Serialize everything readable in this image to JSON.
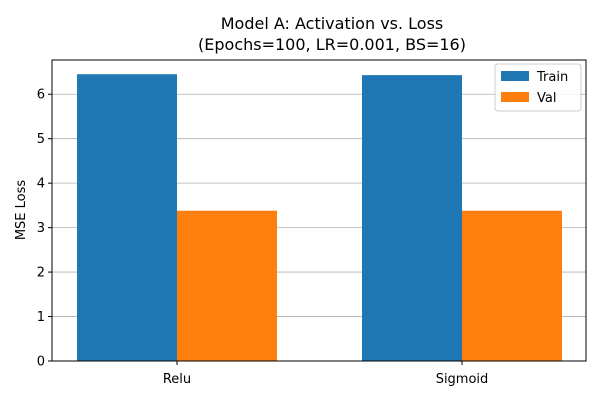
{
  "chart_data": {
    "type": "bar",
    "title": "Model A: Activation vs. Loss",
    "subtitle": "(Epochs=100, LR=0.001, BS=16)",
    "xlabel": "",
    "ylabel": "MSE Loss",
    "categories": [
      "Relu",
      "Sigmoid"
    ],
    "series": [
      {
        "name": "Train",
        "values": [
          6.45,
          6.43
        ],
        "color": "#1f77b4"
      },
      {
        "name": "Val",
        "values": [
          3.38,
          3.38
        ],
        "color": "#ff7f0e"
      }
    ],
    "ylim": [
      0,
      6.77
    ],
    "yticks": [
      0,
      1,
      2,
      3,
      4,
      5,
      6
    ],
    "grid": "horizontal",
    "legend": "top-right"
  }
}
